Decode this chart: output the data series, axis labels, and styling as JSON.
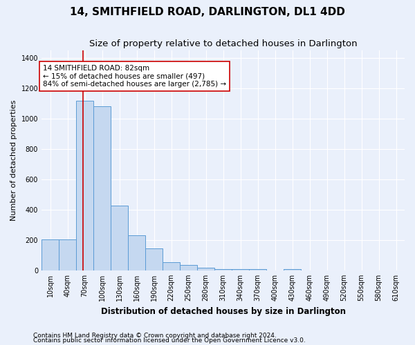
{
  "title": "14, SMITHFIELD ROAD, DARLINGTON, DL1 4DD",
  "subtitle": "Size of property relative to detached houses in Darlington",
  "xlabel": "Distribution of detached houses by size in Darlington",
  "ylabel": "Number of detached properties",
  "categories": [
    "10sqm",
    "40sqm",
    "70sqm",
    "100sqm",
    "130sqm",
    "160sqm",
    "190sqm",
    "220sqm",
    "250sqm",
    "280sqm",
    "310sqm",
    "340sqm",
    "370sqm",
    "400sqm",
    "430sqm",
    "460sqm",
    "490sqm",
    "520sqm",
    "550sqm",
    "580sqm",
    "610sqm"
  ],
  "values": [
    205,
    205,
    1120,
    1080,
    425,
    230,
    145,
    55,
    35,
    20,
    10,
    10,
    10,
    0,
    10,
    0,
    0,
    0,
    0,
    0,
    0
  ],
  "bar_color": "#c5d8f0",
  "bar_edge_color": "#5b9bd5",
  "vline_color": "#cc0000",
  "annotation_text": "14 SMITHFIELD ROAD: 82sqm\n← 15% of detached houses are smaller (497)\n84% of semi-detached houses are larger (2,785) →",
  "annotation_box_color": "#ffffff",
  "annotation_box_edge": "#cc0000",
  "ylim": [
    0,
    1450
  ],
  "yticks": [
    0,
    200,
    400,
    600,
    800,
    1000,
    1200,
    1400
  ],
  "footnote1": "Contains HM Land Registry data © Crown copyright and database right 2024.",
  "footnote2": "Contains public sector information licensed under the Open Government Licence v3.0.",
  "bg_color": "#eaf0fb",
  "plot_bg_color": "#eaf0fb",
  "grid_color": "#ffffff",
  "title_fontsize": 11,
  "subtitle_fontsize": 9.5,
  "xlabel_fontsize": 8.5,
  "ylabel_fontsize": 8,
  "tick_fontsize": 7,
  "annotation_fontsize": 7.5,
  "footnote_fontsize": 6.5
}
